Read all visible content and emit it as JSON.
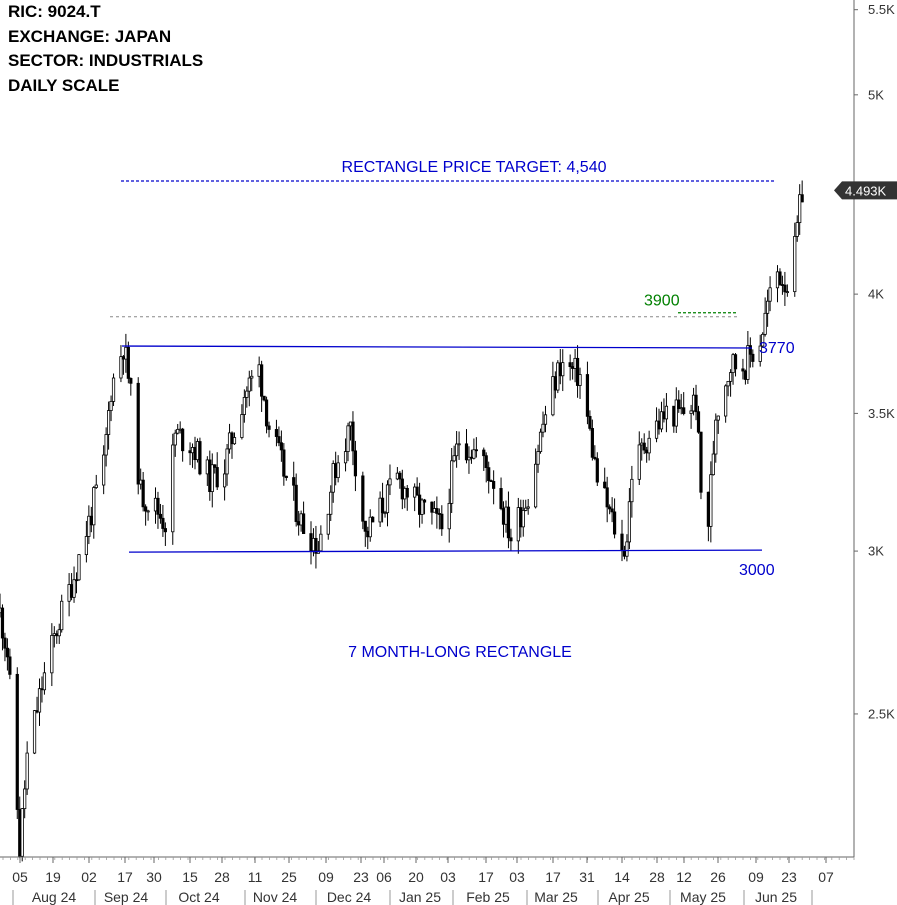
{
  "header": {
    "ric": "RIC:  9024.T",
    "exchange": "EXCHANGE:  JAPAN",
    "sector": "SECTOR:  INDUSTRIALS",
    "scale": "DAILY SCALE"
  },
  "colors": {
    "annotation_blue": "#0000cc",
    "annotation_green": "#008000",
    "candle": "#000000",
    "axis": "#666666",
    "price_badge": "#333333"
  },
  "chart_data": {
    "type": "candlestick",
    "y_scale": "log",
    "ylim": [
      2130,
      5560
    ],
    "y_ticks": [
      {
        "value": 5500,
        "label": "5.5K"
      },
      {
        "value": 5000,
        "label": "5K"
      },
      {
        "value": 4000,
        "label": "4K"
      },
      {
        "value": 3500,
        "label": "3.5K"
      },
      {
        "value": 3000,
        "label": "3K"
      },
      {
        "value": 2500,
        "label": "2.5K"
      }
    ],
    "x_day_labels": [
      "05",
      "19",
      "02",
      "17",
      "30",
      "15",
      "28",
      "11",
      "25",
      "09",
      "23",
      "06",
      "20",
      "03",
      "17",
      "03",
      "17",
      "31",
      "14",
      "28",
      "12",
      "26",
      "09",
      "23",
      "07"
    ],
    "x_month_labels": [
      "Aug 24",
      "Sep 24",
      "Oct 24",
      "Nov 24",
      "Dec 24",
      "Jan 25",
      "Feb 25",
      "Mar 25",
      "Apr 25",
      "May 25",
      "Jun 25"
    ],
    "x_range": [
      "2024-07-29",
      "2025-07-10"
    ],
    "last_price": {
      "value": 4493,
      "label": "4.493K"
    },
    "price_points": [
      {
        "date": "2024-07-29",
        "close": 2800
      },
      {
        "date": "2024-08-01",
        "close": 2680
      },
      {
        "date": "2024-08-05",
        "close": 2250
      },
      {
        "date": "2024-08-06",
        "close": 2150
      },
      {
        "date": "2024-08-09",
        "close": 2380
      },
      {
        "date": "2024-08-15",
        "close": 2580
      },
      {
        "date": "2024-08-21",
        "close": 2750
      },
      {
        "date": "2024-08-28",
        "close": 2920
      },
      {
        "date": "2024-09-03",
        "close": 3100
      },
      {
        "date": "2024-09-09",
        "close": 3300
      },
      {
        "date": "2024-09-12",
        "close": 3600
      },
      {
        "date": "2024-09-17",
        "close": 3780
      },
      {
        "date": "2024-09-19",
        "close": 3650
      },
      {
        "date": "2024-09-24",
        "close": 3200
      },
      {
        "date": "2024-09-30",
        "close": 3150
      },
      {
        "date": "2024-10-04",
        "close": 3100
      },
      {
        "date": "2024-10-08",
        "close": 3420
      },
      {
        "date": "2024-10-15",
        "close": 3380
      },
      {
        "date": "2024-10-22",
        "close": 3250
      },
      {
        "date": "2024-10-28",
        "close": 3300
      },
      {
        "date": "2024-11-05",
        "close": 3580
      },
      {
        "date": "2024-11-11",
        "close": 3680
      },
      {
        "date": "2024-11-15",
        "close": 3450
      },
      {
        "date": "2024-11-22",
        "close": 3250
      },
      {
        "date": "2024-11-28",
        "close": 3100
      },
      {
        "date": "2024-12-05",
        "close": 3020
      },
      {
        "date": "2024-12-12",
        "close": 3300
      },
      {
        "date": "2024-12-18",
        "close": 3450
      },
      {
        "date": "2024-12-24",
        "close": 3050
      },
      {
        "date": "2025-01-06",
        "close": 3250
      },
      {
        "date": "2025-01-15",
        "close": 3150
      },
      {
        "date": "2025-01-24",
        "close": 3080
      },
      {
        "date": "2025-01-31",
        "close": 3400
      },
      {
        "date": "2025-02-07",
        "close": 3350
      },
      {
        "date": "2025-02-14",
        "close": 3250
      },
      {
        "date": "2025-02-21",
        "close": 3050
      },
      {
        "date": "2025-02-28",
        "close": 3200
      },
      {
        "date": "2025-03-07",
        "close": 3500
      },
      {
        "date": "2025-03-13",
        "close": 3700
      },
      {
        "date": "2025-03-21",
        "close": 3650
      },
      {
        "date": "2025-03-28",
        "close": 3250
      },
      {
        "date": "2025-04-04",
        "close": 3080
      },
      {
        "date": "2025-04-07",
        "close": 2990
      },
      {
        "date": "2025-04-09",
        "close": 3050
      },
      {
        "date": "2025-04-11",
        "close": 3280
      },
      {
        "date": "2025-04-18",
        "close": 3420
      },
      {
        "date": "2025-04-25",
        "close": 3500
      },
      {
        "date": "2025-05-01",
        "close": 3500
      },
      {
        "date": "2025-05-07",
        "close": 3550
      },
      {
        "date": "2025-05-09",
        "close": 3200
      },
      {
        "date": "2025-05-12",
        "close": 3100
      },
      {
        "date": "2025-05-15",
        "close": 3500
      },
      {
        "date": "2025-05-21",
        "close": 3700
      },
      {
        "date": "2025-05-27",
        "close": 3700
      },
      {
        "date": "2025-06-02",
        "close": 3800
      },
      {
        "date": "2025-06-05",
        "close": 3950
      },
      {
        "date": "2025-06-09",
        "close": 4100
      },
      {
        "date": "2025-06-13",
        "close": 4050
      },
      {
        "date": "2025-06-16",
        "close": 4200
      },
      {
        "date": "2025-06-19",
        "close": 4493
      }
    ],
    "annotations": [
      {
        "text": "RECTANGLE PRICE TARGET: 4,540",
        "value": 4540
      },
      {
        "text": "3900",
        "value": 3900
      },
      {
        "text": "3770",
        "value": 3770
      },
      {
        "text": "3000",
        "value": 3000
      },
      {
        "text": "7 MONTH-LONG RECTANGLE"
      }
    ]
  }
}
